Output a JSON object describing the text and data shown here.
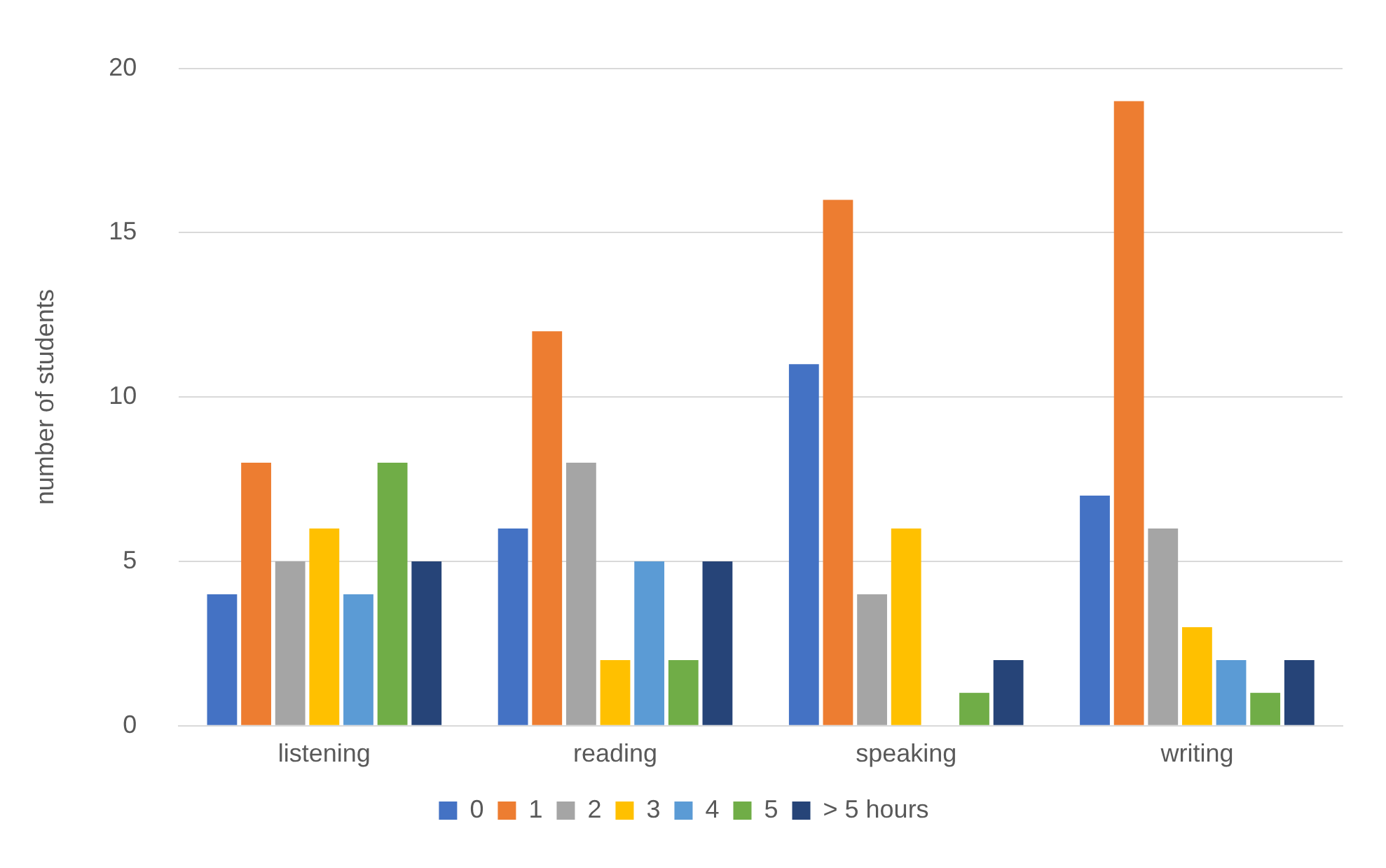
{
  "chart_data": {
    "type": "bar",
    "ylabel": "number of students",
    "categories": [
      "listening",
      "reading",
      "speaking",
      "writing"
    ],
    "series": [
      {
        "name": "0",
        "color": "#4472c4",
        "values": [
          4,
          6,
          11,
          7
        ]
      },
      {
        "name": "1",
        "color": "#ed7d31",
        "values": [
          8,
          12,
          16,
          19
        ]
      },
      {
        "name": "2",
        "color": "#a5a5a5",
        "values": [
          5,
          8,
          4,
          6
        ]
      },
      {
        "name": "3",
        "color": "#ffc000",
        "values": [
          6,
          2,
          6,
          3
        ]
      },
      {
        "name": "4",
        "color": "#5b9bd5",
        "values": [
          4,
          5,
          0,
          2
        ]
      },
      {
        "name": "5",
        "color": "#70ad47",
        "values": [
          8,
          2,
          1,
          1
        ]
      },
      {
        "name": "> 5 hours",
        "color": "#264478",
        "values": [
          5,
          5,
          2,
          2
        ]
      }
    ],
    "ylim": [
      0,
      20
    ],
    "yticks": [
      0,
      5,
      10,
      15,
      20
    ],
    "grid": "y",
    "legend": "bottom"
  }
}
